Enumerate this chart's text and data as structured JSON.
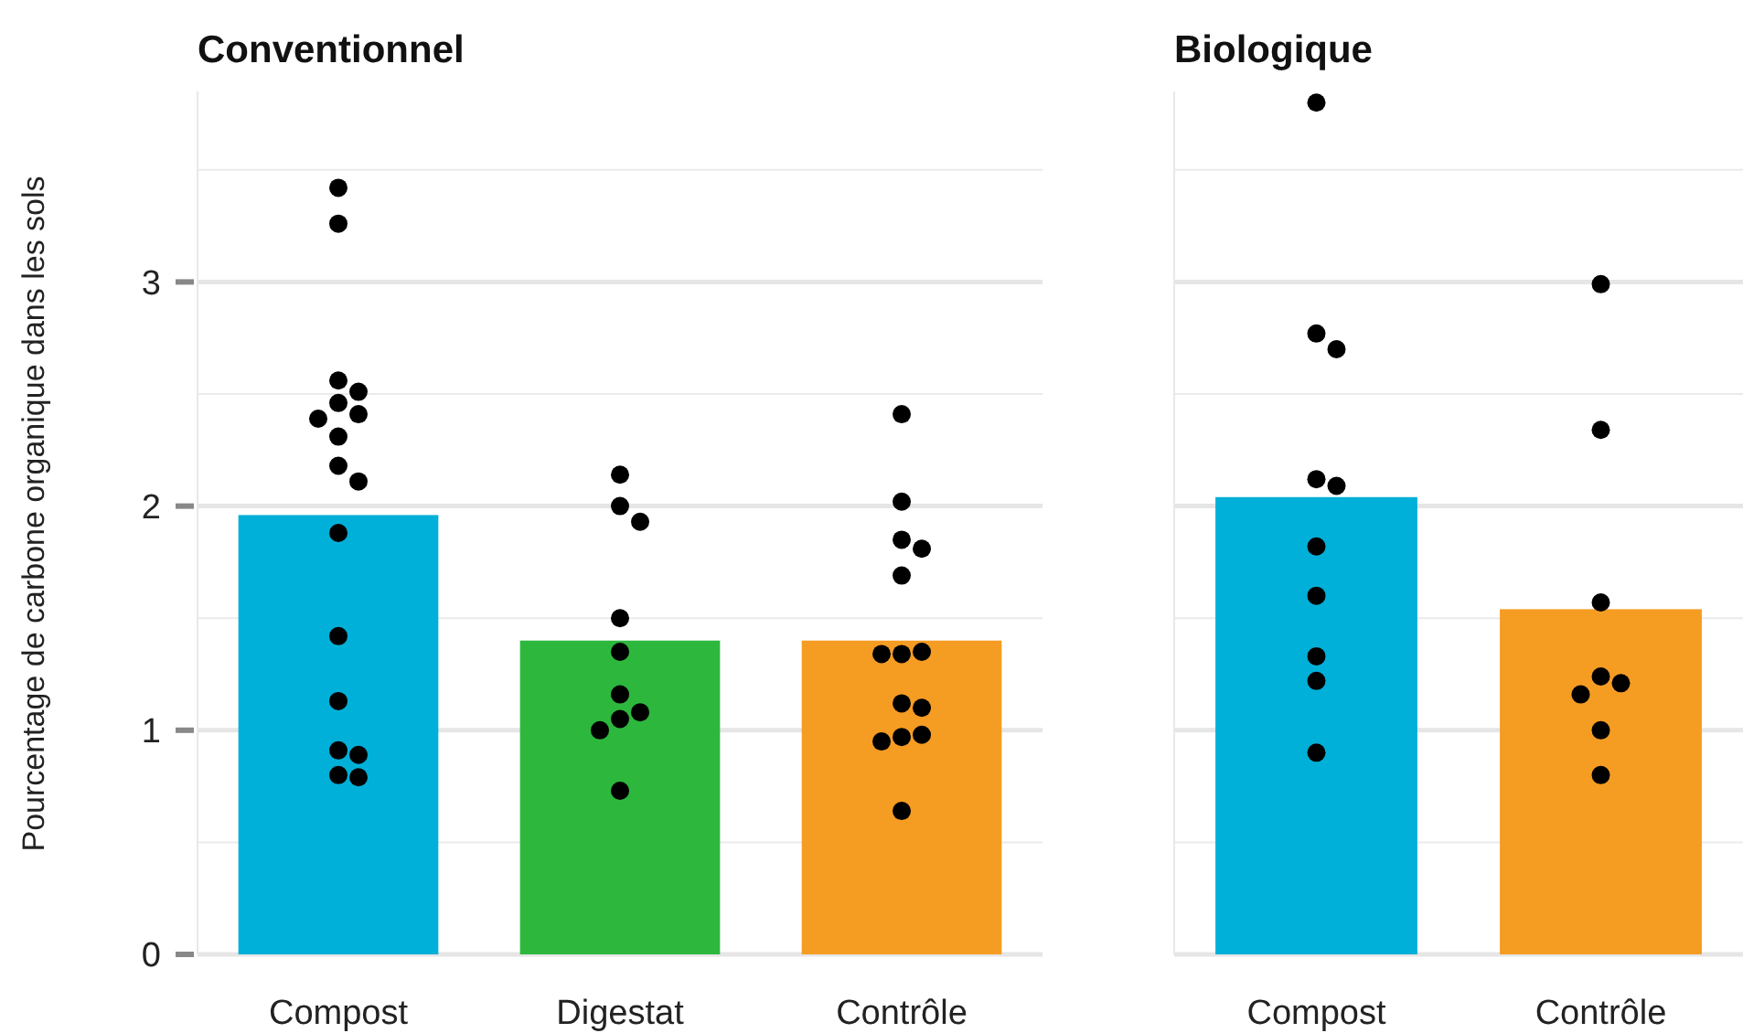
{
  "chart_data": [
    {
      "type": "bar",
      "title": "Conventionnel",
      "ylabel": "Pourcentage de carbone organique dans les sols",
      "categories": [
        "Compost",
        "Digestat",
        "Contrôle"
      ],
      "ylim": [
        0,
        3.85
      ],
      "yticks": [
        0,
        1,
        2,
        3
      ],
      "grid": "y",
      "series": [
        {
          "values": [
            1.96,
            1.4,
            1.4
          ],
          "colors": [
            "#00b0d8",
            "#2db83d",
            "#f59c23"
          ]
        },
        {
          "type": "scatter",
          "color": "#000000",
          "marker": "circle",
          "x": [
            "Compost",
            "Compost",
            "Compost",
            "Compost",
            "Compost",
            "Compost",
            "Compost",
            "Compost",
            "Compost",
            "Compost",
            "Compost",
            "Compost",
            "Compost",
            "Compost",
            "Compost",
            "Compost",
            "Compost",
            "Digestat",
            "Digestat",
            "Digestat",
            "Digestat",
            "Digestat",
            "Digestat",
            "Digestat",
            "Digestat",
            "Digestat",
            "Digestat",
            "Contrôle",
            "Contrôle",
            "Contrôle",
            "Contrôle",
            "Contrôle",
            "Contrôle",
            "Contrôle",
            "Contrôle",
            "Contrôle",
            "Contrôle",
            "Contrôle",
            "Contrôle",
            "Contrôle",
            "Contrôle"
          ],
          "values": [
            3.42,
            3.26,
            2.56,
            2.51,
            2.46,
            2.41,
            2.39,
            2.31,
            2.18,
            2.11,
            1.88,
            1.42,
            1.13,
            0.8,
            0.79,
            0.91,
            0.89,
            2.14,
            2.0,
            1.93,
            1.5,
            1.35,
            1.16,
            1.08,
            1.05,
            1.0,
            0.73,
            2.41,
            2.02,
            1.85,
            1.81,
            1.69,
            1.34,
            1.35,
            1.34,
            1.12,
            1.1,
            0.97,
            0.98,
            0.95,
            0.64
          ]
        }
      ]
    },
    {
      "type": "bar",
      "title": "Biologique",
      "categories": [
        "Compost",
        "Contrôle"
      ],
      "ylim": [
        0,
        3.85
      ],
      "yticks": [
        0,
        1,
        2,
        3
      ],
      "grid": "y",
      "tick_labels": "x",
      "series": [
        {
          "values": [
            2.04,
            1.54
          ],
          "colors": [
            "#00b0d8",
            "#f59c23"
          ]
        },
        {
          "type": "scatter",
          "color": "#000000",
          "marker": "circle",
          "x": [
            "Compost",
            "Compost",
            "Compost",
            "Compost",
            "Compost",
            "Compost",
            "Compost",
            "Compost",
            "Compost",
            "Compost",
            "Contrôle",
            "Contrôle",
            "Contrôle",
            "Contrôle",
            "Contrôle",
            "Contrôle",
            "Contrôle",
            "Contrôle"
          ],
          "values": [
            3.8,
            2.77,
            2.7,
            2.12,
            2.09,
            1.82,
            1.6,
            1.33,
            1.22,
            0.9,
            2.99,
            2.34,
            1.57,
            1.24,
            1.21,
            1.16,
            1.0,
            0.8
          ]
        }
      ]
    }
  ]
}
